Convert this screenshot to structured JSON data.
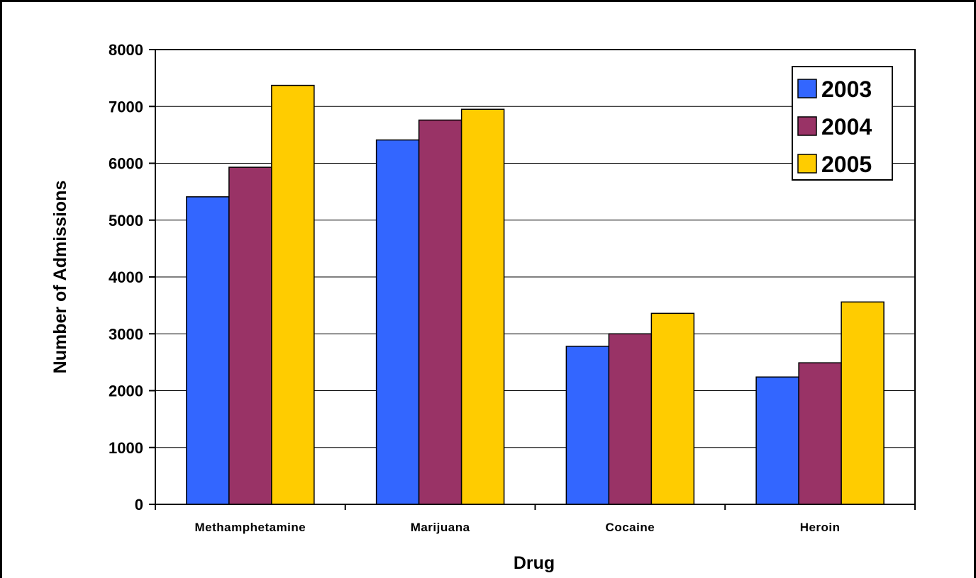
{
  "chart_data": {
    "type": "bar",
    "title": "",
    "xlabel": "Drug",
    "ylabel": "Number of Admissions",
    "categories": [
      "Methamphetamine",
      "Marijuana",
      "Cocaine",
      "Heroin"
    ],
    "series": [
      {
        "name": "2003",
        "color": "#3366FF",
        "values": [
          5410,
          6410,
          2780,
          2240
        ]
      },
      {
        "name": "2004",
        "color": "#993366",
        "values": [
          5930,
          6760,
          3000,
          2490
        ]
      },
      {
        "name": "2005",
        "color": "#FFCC00",
        "values": [
          7370,
          6950,
          3360,
          3560
        ]
      }
    ],
    "ylim": [
      0,
      8000
    ],
    "yticks": [
      "0",
      "1000",
      "2000",
      "3000",
      "4000",
      "5000",
      "6000",
      "7000",
      "8000"
    ],
    "grid": true,
    "legend_position": "top-right"
  }
}
